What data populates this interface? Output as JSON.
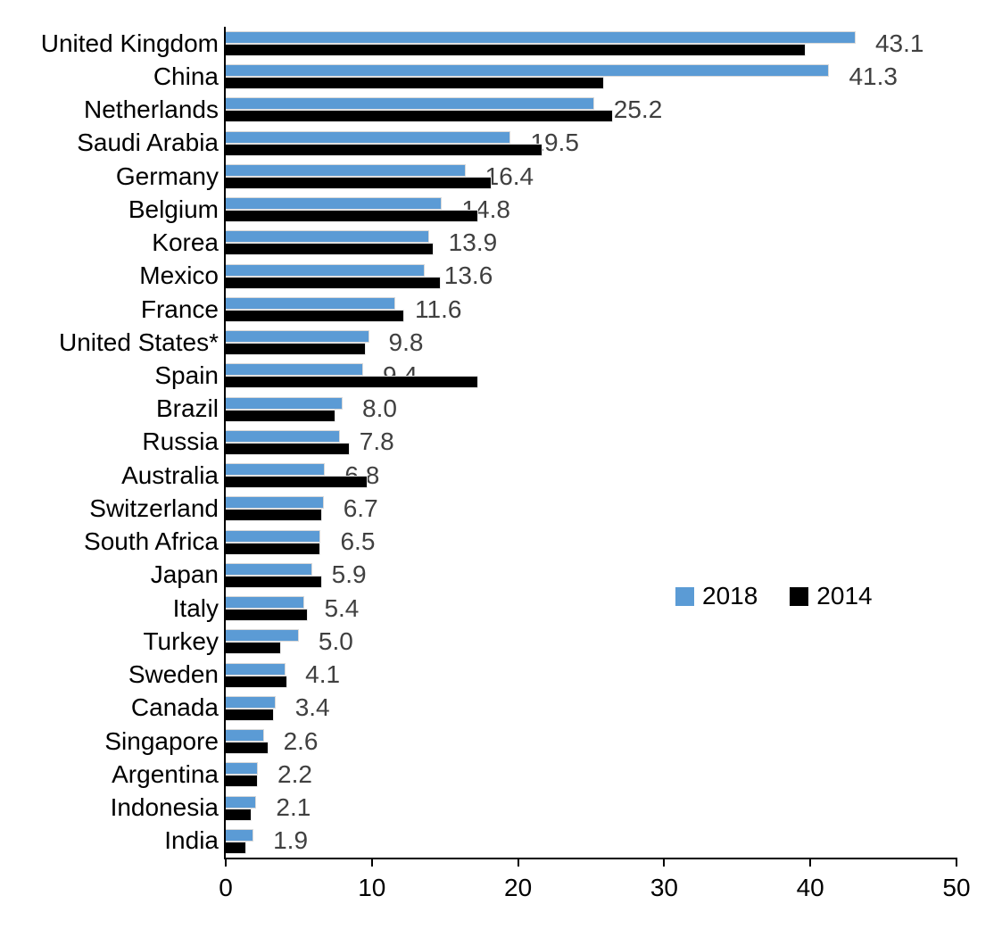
{
  "chart_data": {
    "type": "bar",
    "orientation": "horizontal",
    "title": "",
    "xlabel": "",
    "ylabel": "",
    "xlim": [
      0,
      50
    ],
    "x_ticks": [
      "0",
      "10",
      "20",
      "30",
      "40",
      "50"
    ],
    "grid": false,
    "legend_position": "middle-right",
    "value_label_color": "#404040",
    "categories": [
      "United Kingdom",
      "China",
      "Netherlands",
      "Saudi Arabia",
      "Germany",
      "Belgium",
      "Korea",
      "Mexico",
      "France",
      "United States*",
      "Spain",
      "Brazil",
      "Russia",
      "Australia",
      "Switzerland",
      "South Africa",
      "Japan",
      "Italy",
      "Turkey",
      "Sweden",
      "Canada",
      "Singapore",
      "Argentina",
      "Indonesia",
      "India"
    ],
    "series": [
      {
        "name": "2018",
        "color": "#5B9BD5",
        "values": [
          43.1,
          41.3,
          25.2,
          19.5,
          16.4,
          14.8,
          13.9,
          13.6,
          11.6,
          9.8,
          9.4,
          8.0,
          7.8,
          6.8,
          6.7,
          6.5,
          5.9,
          5.4,
          5.0,
          4.1,
          3.4,
          2.6,
          2.2,
          2.1,
          1.9
        ],
        "data_labels": [
          "43.1",
          "41.3",
          "25.2",
          "19.5",
          "16.4",
          "14.8",
          "13.9",
          "13.6",
          "11.6",
          "9.8",
          "9.4",
          "8.0",
          "7.8",
          "6.8",
          "6.7",
          "6.5",
          "5.9",
          "5.4",
          "5.0",
          "4.1",
          "3.4",
          "2.6",
          "2.2",
          "2.1",
          "1.9"
        ]
      },
      {
        "name": "2014",
        "color": "#000000",
        "values": [
          39.7,
          25.9,
          26.5,
          21.7,
          18.2,
          17.3,
          14.2,
          14.7,
          12.2,
          9.6,
          17.3,
          7.5,
          8.5,
          9.7,
          6.6,
          6.5,
          6.6,
          5.6,
          3.8,
          4.2,
          3.3,
          2.9,
          2.2,
          1.8,
          1.4
        ],
        "data_labels": []
      }
    ]
  }
}
